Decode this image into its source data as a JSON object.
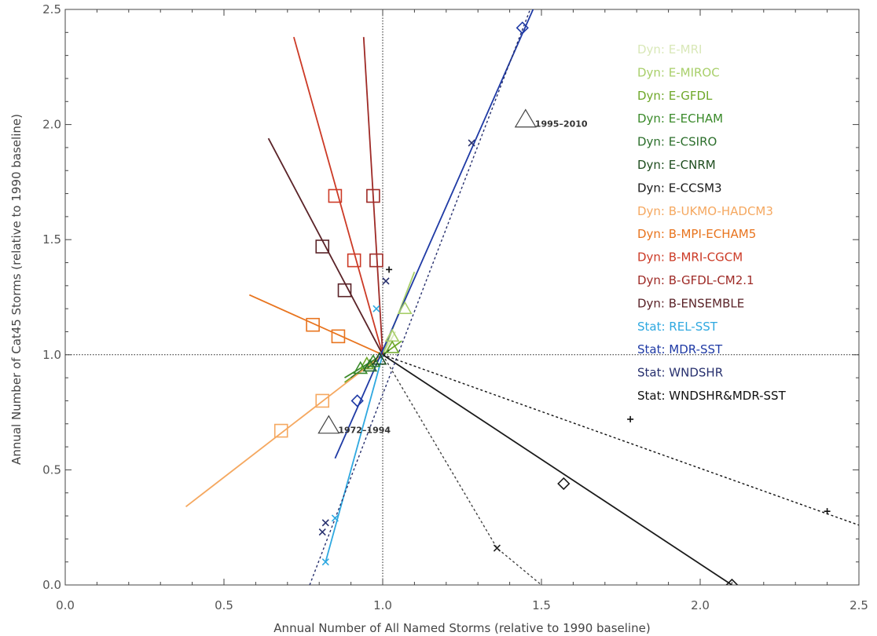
{
  "chart_data": {
    "type": "line",
    "xlabel": "Annual Number of All Named Storms (relative to 1990 baseline)",
    "ylabel": "Annual Number of Cat45 Storms (relative to 1990 baseline)",
    "xlim": [
      0.0,
      2.5
    ],
    "ylim": [
      0.0,
      2.5
    ],
    "xticks": [
      "0.0",
      "0.5",
      "1.0",
      "1.5",
      "2.0",
      "2.5"
    ],
    "yticks": [
      "0.0",
      "0.5",
      "1.0",
      "1.5",
      "2.0",
      "2.5"
    ],
    "reference_lines": {
      "x": 1.0,
      "y": 1.0
    },
    "grid": false,
    "legend_placement": "top-right",
    "series": [
      {
        "name": "Dyn:  E-MRI",
        "color": "#d9e8b8",
        "style": "solid",
        "marker": "triangle",
        "line": [
          [
            1.0,
            1.0
          ],
          [
            1.04,
            1.1
          ]
        ],
        "markers": [
          [
            1.03,
            1.08
          ]
        ]
      },
      {
        "name": "Dyn:  E-MIROC",
        "color": "#a8cf6a",
        "style": "solid",
        "marker": "triangle",
        "line": [
          [
            1.0,
            1.0
          ],
          [
            1.1,
            1.36
          ]
        ],
        "markers": [
          [
            1.07,
            1.2
          ],
          [
            1.03,
            1.08
          ]
        ]
      },
      {
        "name": "Dyn:  E-GFDL",
        "color": "#6fa82a",
        "style": "solid",
        "marker": "triangle",
        "line": [
          [
            0.88,
            0.88
          ],
          [
            1.06,
            1.06
          ]
        ],
        "markers": [
          [
            0.95,
            0.96
          ],
          [
            1.03,
            1.03
          ]
        ]
      },
      {
        "name": "Dyn:  E-ECHAM",
        "color": "#3a8a2a",
        "style": "solid",
        "marker": "triangle",
        "line": [
          [
            0.88,
            0.9
          ],
          [
            1.0,
            1.0
          ]
        ],
        "markers": [
          [
            0.93,
            0.94
          ],
          [
            0.97,
            0.97
          ]
        ]
      },
      {
        "name": "Dyn:  E-CSIRO",
        "color": "#2b6e2b",
        "style": "solid",
        "marker": "triangle",
        "line": [
          [
            0.9,
            0.9
          ],
          [
            1.02,
            1.02
          ]
        ],
        "markers": [
          [
            0.96,
            0.95
          ]
        ]
      },
      {
        "name": "Dyn:  E-CNRM",
        "color": "#1f4d1f",
        "style": "solid",
        "marker": "triangle",
        "line": [
          [
            0.95,
            0.94
          ],
          [
            1.02,
            1.02
          ]
        ],
        "markers": [
          [
            0.99,
            0.98
          ]
        ]
      },
      {
        "name": "Dyn:  E-CCSM3",
        "color": "#1a1a1a",
        "style": "solid",
        "marker": "diamond",
        "line": [
          [
            1.0,
            1.0
          ],
          [
            2.1,
            0.0
          ]
        ],
        "markers": [
          [
            1.57,
            0.44
          ],
          [
            2.1,
            0.0
          ]
        ]
      },
      {
        "name": "Dyn:  B-UKMO-HADCM3",
        "color": "#f5a860",
        "style": "solid",
        "marker": "square",
        "line": [
          [
            0.38,
            0.34
          ],
          [
            1.0,
            1.0
          ]
        ],
        "markers": [
          [
            0.68,
            0.67
          ],
          [
            0.81,
            0.8
          ]
        ]
      },
      {
        "name": "Dyn:  B-MPI-ECHAM5",
        "color": "#e8741e",
        "style": "solid",
        "marker": "square",
        "line": [
          [
            0.58,
            1.26
          ],
          [
            1.0,
            1.0
          ]
        ],
        "markers": [
          [
            0.78,
            1.13
          ],
          [
            0.86,
            1.08
          ]
        ]
      },
      {
        "name": "Dyn:  B-MRI-CGCM",
        "color": "#cc3a26",
        "style": "solid",
        "marker": "square",
        "line": [
          [
            0.72,
            2.38
          ],
          [
            1.0,
            1.0
          ]
        ],
        "markers": [
          [
            0.85,
            1.69
          ],
          [
            0.91,
            1.41
          ]
        ]
      },
      {
        "name": "Dyn:  B-GFDL-CM2.1",
        "color": "#9e2a26",
        "style": "solid",
        "marker": "square",
        "line": [
          [
            0.94,
            2.38
          ],
          [
            1.0,
            1.0
          ]
        ],
        "markers": [
          [
            0.97,
            1.69
          ],
          [
            0.98,
            1.41
          ]
        ]
      },
      {
        "name": "Dyn:  B-ENSEMBLE",
        "color": "#5a2328",
        "style": "solid",
        "marker": "square",
        "line": [
          [
            0.64,
            1.94
          ],
          [
            1.0,
            1.0
          ]
        ],
        "markers": [
          [
            0.81,
            1.47
          ],
          [
            0.88,
            1.28
          ]
        ]
      },
      {
        "name": "Stat:  REL-SST",
        "color": "#2ea8e0",
        "style": "solid",
        "marker": "x",
        "line": [
          [
            0.82,
            0.1
          ],
          [
            1.0,
            1.0
          ]
        ],
        "markers": [
          [
            0.82,
            0.1
          ],
          [
            0.85,
            0.29
          ],
          [
            0.98,
            1.2
          ]
        ]
      },
      {
        "name": "Stat:  MDR-SST",
        "color": "#1f3aa5",
        "style": "solid",
        "marker": "diamond",
        "line": [
          [
            0.85,
            0.55
          ],
          [
            1.48,
            2.52
          ]
        ],
        "markers": [
          [
            1.44,
            2.42
          ],
          [
            0.92,
            0.8
          ]
        ]
      },
      {
        "name": "Stat:  WNDSHR",
        "color": "#27306e",
        "style": "dotted",
        "marker": "x",
        "line": [
          [
            0.77,
            0.0
          ],
          [
            1.47,
            2.52
          ]
        ],
        "markers": [
          [
            0.81,
            0.23
          ],
          [
            0.82,
            0.27
          ],
          [
            1.28,
            1.92
          ],
          [
            1.01,
            1.32
          ]
        ]
      },
      {
        "name": "Stat:  WNDSHR&MDR-SST",
        "color": "#111111",
        "style": "dotted",
        "marker": "plus",
        "line": [
          [
            1.0,
            1.0
          ],
          [
            2.52,
            0.25
          ]
        ],
        "markers": [
          [
            1.78,
            0.72
          ],
          [
            2.4,
            0.32
          ],
          [
            1.02,
            1.37
          ]
        ]
      }
    ],
    "extra_dotted_lines": [
      {
        "color": "#444444",
        "line": [
          [
            1.0,
            1.0
          ],
          [
            1.36,
            0.16
          ],
          [
            1.5,
            0.0
          ]
        ],
        "markers": [
          [
            1.36,
            0.16
          ]
        ]
      }
    ],
    "annotations": [
      {
        "text": "1995–2010",
        "x": 1.45,
        "y": 2.02
      },
      {
        "text": "1972–1994",
        "x": 0.83,
        "y": 0.69
      }
    ]
  }
}
